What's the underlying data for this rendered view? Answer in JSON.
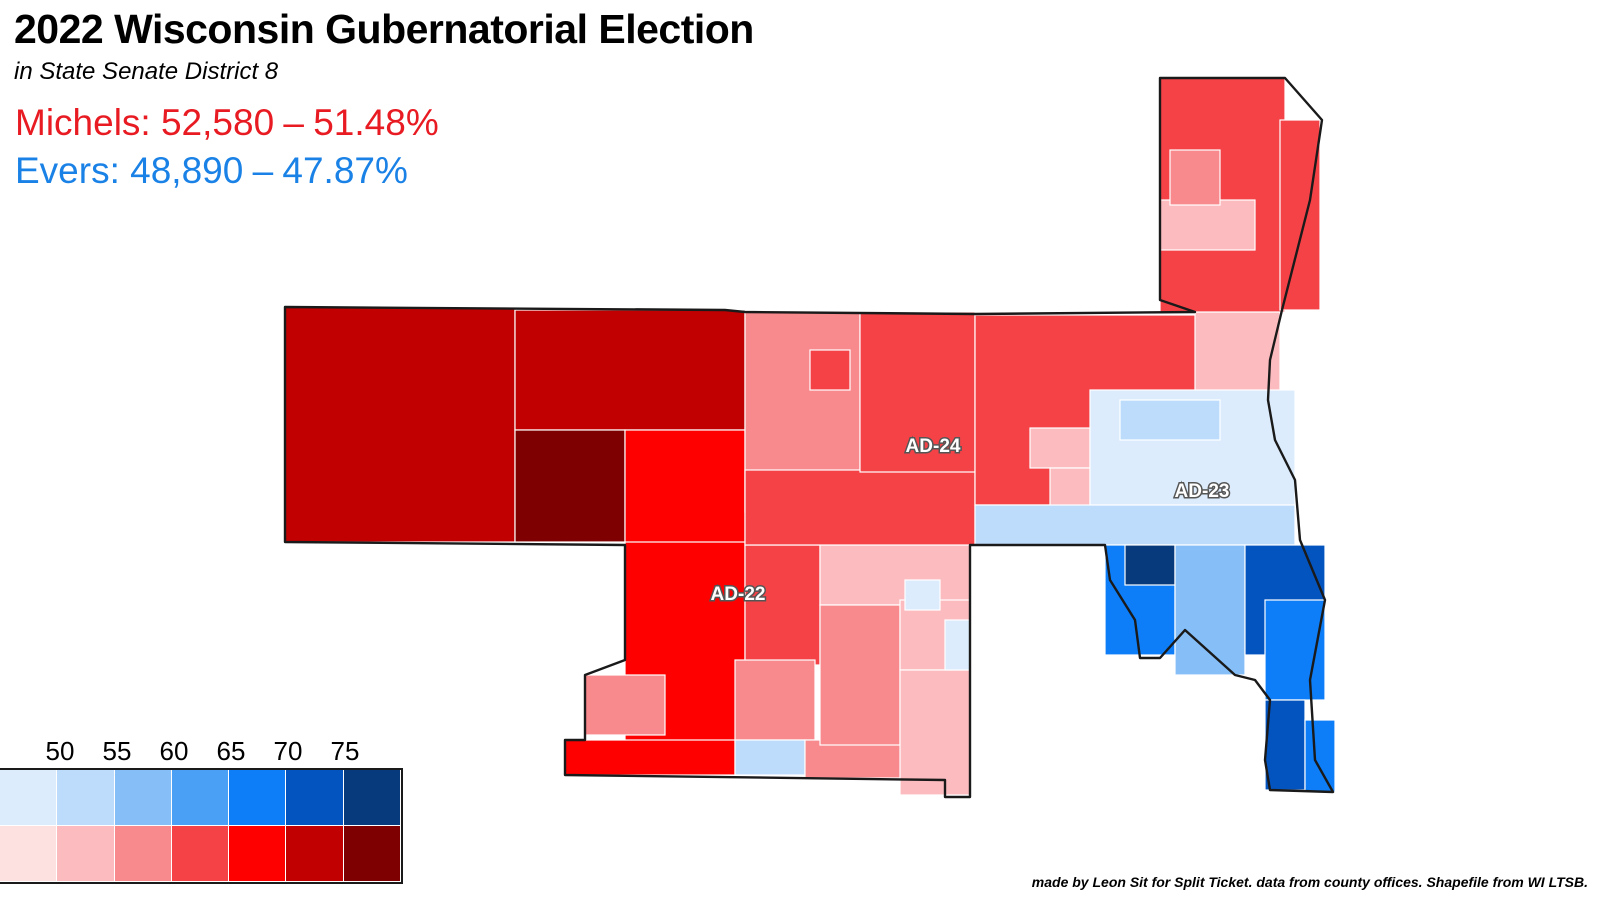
{
  "title": "2022 Wisconsin Gubernatorial Election",
  "subtitle": "in State Senate District 8",
  "results": {
    "rep": {
      "candidate": "Michels",
      "votes": "52,580",
      "pct": "51.48%"
    },
    "dem": {
      "candidate": "Evers",
      "votes": "48,890",
      "pct": "47.87%"
    },
    "separator": "–"
  },
  "districts": {
    "ad22": "AD-22",
    "ad23": "AD-23",
    "ad24": "AD-24"
  },
  "legend": {
    "thresholds": [
      "50",
      "55",
      "60",
      "65",
      "70",
      "75"
    ],
    "dem_colors": [
      "#dcecfc",
      "#bddcfc",
      "#86bff8",
      "#4aa0f5",
      "#0d7ef7",
      "#0454c0",
      "#073a7c"
    ],
    "rep_colors": [
      "#fde0e0",
      "#fcbcbf",
      "#f8898d",
      "#f54247",
      "#fe0000",
      "#c10002",
      "#7f0000"
    ]
  },
  "credit": "made by Leon Sit for Split Ticket. data from county offices. Shapefile from WI LTSB."
}
